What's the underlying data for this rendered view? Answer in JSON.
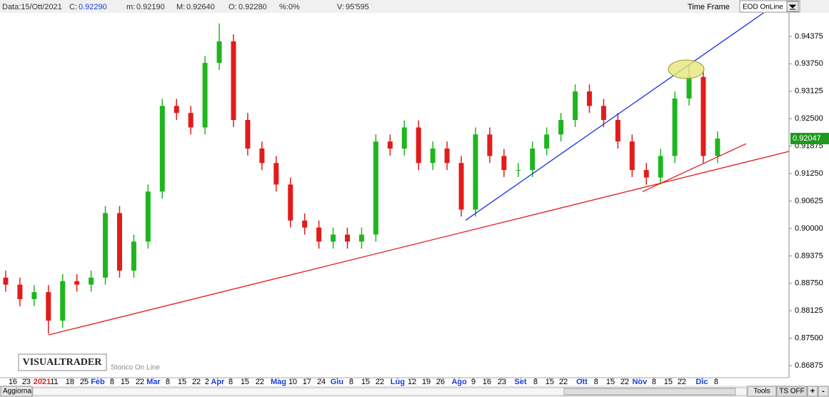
{
  "header": {
    "date": "Data:15/Ott/2021",
    "close_label": "C:",
    "close": "0.92290",
    "min_label": "m:",
    "min": "0.92190",
    "max_label": "M:",
    "max": "0.92640",
    "open_label": "O:",
    "open": "0.92280",
    "pct": "%:0%",
    "vol_label": "V:",
    "vol": "95'595",
    "time_frame": "Time Frame",
    "feed": "EOD OnLine"
  },
  "footer": {
    "refresh": "Aggiorna",
    "tools": "Tools",
    "ts": "TS OFF",
    "plus": "+",
    "minus": "-"
  },
  "logo": {
    "name": "VISUALTRADER",
    "subtitle": "Storico On Line"
  },
  "chart_data": {
    "type": "candlestick",
    "up_color": "#1fb51f",
    "down_color": "#e21b1b",
    "open": [
      0.8888,
      0.8872,
      0.8839,
      0.8855,
      0.879,
      0.888,
      0.8872,
      0.8888,
      0.9035,
      0.8904,
      0.897,
      0.9084,
      0.9279,
      0.9263,
      0.923,
      0.9377,
      0.9426,
      0.9247,
      0.9182,
      0.9149,
      0.91,
      0.9018,
      0.9002,
      0.897,
      0.8986,
      0.897,
      0.8986,
      0.9198,
      0.9182,
      0.923,
      0.9149,
      0.9182,
      0.9149,
      0.9043,
      0.9214,
      0.9165,
      0.9133,
      0.9133,
      0.9182,
      0.9214,
      0.9247,
      0.9312,
      0.9279,
      0.9247,
      0.9198,
      0.9133,
      0.9116,
      0.9165,
      0.9296,
      0.9345,
      0.9165
    ],
    "high": [
      0.8904,
      0.8888,
      0.8871,
      0.8871,
      0.8896,
      0.8896,
      0.8904,
      0.9051,
      0.9051,
      0.8986,
      0.91,
      0.9295,
      0.9295,
      0.9279,
      0.9393,
      0.9467,
      0.9442,
      0.9263,
      0.9198,
      0.9165,
      0.9116,
      0.9034,
      0.9018,
      0.9002,
      0.9002,
      0.9002,
      0.9214,
      0.9214,
      0.9246,
      0.9246,
      0.9198,
      0.9198,
      0.9165,
      0.923,
      0.923,
      0.9181,
      0.9149,
      0.9198,
      0.923,
      0.9263,
      0.9328,
      0.9328,
      0.9295,
      0.9263,
      0.9214,
      0.9149,
      0.9181,
      0.9312,
      0.9372,
      0.9361,
      0.9221
    ],
    "low": [
      0.8856,
      0.8823,
      0.8823,
      0.876,
      0.8774,
      0.8856,
      0.8856,
      0.8872,
      0.8888,
      0.8888,
      0.8954,
      0.9068,
      0.9247,
      0.9214,
      0.9214,
      0.9361,
      0.9231,
      0.9166,
      0.9133,
      0.9084,
      0.9002,
      0.8986,
      0.8954,
      0.8954,
      0.8954,
      0.8954,
      0.897,
      0.9166,
      0.9166,
      0.9133,
      0.9133,
      0.9133,
      0.9027,
      0.9027,
      0.9149,
      0.9117,
      0.9117,
      0.9117,
      0.9166,
      0.9198,
      0.9231,
      0.9263,
      0.9231,
      0.9182,
      0.9117,
      0.91,
      0.91,
      0.9149,
      0.928,
      0.9149,
      0.9149
    ],
    "close": [
      0.8872,
      0.8839,
      0.8855,
      0.879,
      0.888,
      0.8872,
      0.8888,
      0.9035,
      0.8904,
      0.897,
      0.9084,
      0.9279,
      0.9263,
      0.923,
      0.9377,
      0.9426,
      0.9247,
      0.9182,
      0.9149,
      0.91,
      0.9018,
      0.9002,
      0.897,
      0.8986,
      0.897,
      0.8986,
      0.9198,
      0.9182,
      0.923,
      0.9149,
      0.9182,
      0.9149,
      0.9043,
      0.9214,
      0.9165,
      0.9133,
      0.9133,
      0.9182,
      0.9214,
      0.9247,
      0.9312,
      0.9279,
      0.9247,
      0.9198,
      0.9133,
      0.9116,
      0.9165,
      0.9296,
      0.9345,
      0.9165,
      0.92047
    ],
    "xlim": [
      -0.4,
      55.02
    ],
    "ylim": [
      0.866,
      0.9491
    ],
    "yticks": [
      {
        "value": 0.94375,
        "label": "0.94375"
      },
      {
        "value": 0.9375,
        "label": "0.93750"
      },
      {
        "value": 0.93125,
        "label": "0.93125"
      },
      {
        "value": 0.925,
        "label": "0.92500"
      },
      {
        "value": 0.91875,
        "label": "0.91875"
      },
      {
        "value": 0.9125,
        "label": "0.91250"
      },
      {
        "value": 0.90625,
        "label": "0.90625"
      },
      {
        "value": 0.9,
        "label": "0.90000"
      },
      {
        "value": 0.89375,
        "label": "0.89375"
      },
      {
        "value": 0.8875,
        "label": "0.88750"
      },
      {
        "value": 0.88125,
        "label": "0.88125"
      },
      {
        "value": 0.875,
        "label": "0.87500"
      },
      {
        "value": 0.86875,
        "label": "0.86875"
      }
    ],
    "xticks": [
      {
        "value": 0.5,
        "label": "16"
      },
      {
        "value": 1.45,
        "label": "23"
      },
      {
        "value": 2.56,
        "label": "2021",
        "color": "#e21b1b"
      },
      {
        "value": 3.41,
        "label": "11"
      },
      {
        "value": 4.51,
        "label": "18"
      },
      {
        "value": 5.52,
        "label": "25"
      },
      {
        "value": 6.47,
        "label": "Feb",
        "color": "#1a3fd6"
      },
      {
        "value": 7.47,
        "label": "8"
      },
      {
        "value": 8.38,
        "label": "15"
      },
      {
        "value": 9.43,
        "label": "22"
      },
      {
        "value": 10.38,
        "label": "Mar",
        "color": "#1a3fd6"
      },
      {
        "value": 11.38,
        "label": "8"
      },
      {
        "value": 12.39,
        "label": "15"
      },
      {
        "value": 13.39,
        "label": "22"
      },
      {
        "value": 14.14,
        "label": "2"
      },
      {
        "value": 14.89,
        "label": "Apr",
        "color": "#1a3fd6"
      },
      {
        "value": 15.8,
        "label": "8"
      },
      {
        "value": 16.8,
        "label": "15"
      },
      {
        "value": 17.85,
        "label": "22"
      },
      {
        "value": 19.16,
        "label": "Mag",
        "color": "#1a3fd6"
      },
      {
        "value": 20.16,
        "label": "10"
      },
      {
        "value": 21.16,
        "label": "17"
      },
      {
        "value": 22.17,
        "label": "24"
      },
      {
        "value": 23.27,
        "label": "Giu",
        "color": "#1a3fd6"
      },
      {
        "value": 24.27,
        "label": "8"
      },
      {
        "value": 25.28,
        "label": "15"
      },
      {
        "value": 26.28,
        "label": "22"
      },
      {
        "value": 27.53,
        "label": "Lug",
        "color": "#1a3fd6"
      },
      {
        "value": 28.54,
        "label": "12"
      },
      {
        "value": 29.54,
        "label": "19"
      },
      {
        "value": 30.54,
        "label": "26"
      },
      {
        "value": 31.85,
        "label": "Ago",
        "color": "#1a3fd6"
      },
      {
        "value": 32.85,
        "label": "9"
      },
      {
        "value": 33.8,
        "label": "16"
      },
      {
        "value": 34.85,
        "label": "23"
      },
      {
        "value": 36.16,
        "label": "Set",
        "color": "#1a3fd6"
      },
      {
        "value": 37.21,
        "label": "8"
      },
      {
        "value": 38.21,
        "label": "15"
      },
      {
        "value": 39.17,
        "label": "22"
      },
      {
        "value": 40.47,
        "label": "Ott",
        "color": "#1a3fd6"
      },
      {
        "value": 41.47,
        "label": "8"
      },
      {
        "value": 42.48,
        "label": "15"
      },
      {
        "value": 43.48,
        "label": "22"
      },
      {
        "value": 44.53,
        "label": "Nov",
        "color": "#1a3fd6"
      },
      {
        "value": 45.54,
        "label": "8"
      },
      {
        "value": 46.54,
        "label": "15"
      },
      {
        "value": 47.49,
        "label": "22"
      },
      {
        "value": 48.9,
        "label": "Dic",
        "color": "#1a3fd6"
      },
      {
        "value": 49.9,
        "label": "8"
      }
    ],
    "trend_lines": [
      {
        "color": "#e21b1b",
        "x": [
          3.01,
          55.16
        ],
        "y": [
          0.87575,
          0.91766
        ]
      },
      {
        "color": "#1a2fe0",
        "x": [
          32.3,
          53.41
        ],
        "y": [
          0.90185,
          0.9495
        ]
      },
      {
        "color": "#e21b1b",
        "x": [
          44.73,
          52.0
        ],
        "y": [
          0.90837,
          0.91929
        ]
      }
    ]
  }
}
